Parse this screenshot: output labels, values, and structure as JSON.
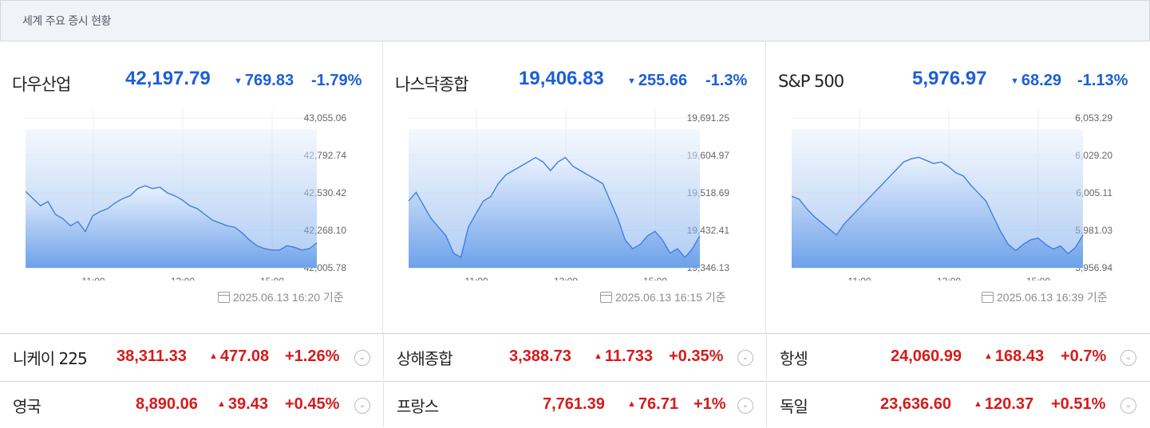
{
  "header": {
    "title": "세계 주요 증시 현황"
  },
  "colors": {
    "down": "#1c5fd6",
    "up": "#d61a1a",
    "area_top": "#eaf2fd",
    "area_bottom": "#6da1ea",
    "line": "#3f7fe0"
  },
  "icons": {
    "down_arrow": "triangle-down",
    "up_arrow": "triangle-up",
    "calendar": "calendar-icon",
    "toggle": "chevron-down-icon"
  },
  "panels": [
    {
      "name": "다우산업",
      "price": "42,197.79",
      "change": "769.83",
      "percent": "-1.79%",
      "direction": "down",
      "timestamp": "2025.06.13 16:20 기준",
      "chart_data": {
        "type": "area",
        "x_ticks": [
          "11:00",
          "13:00",
          "15:00"
        ],
        "y_ticks": [
          "43,055.06",
          "42,792.74",
          "42,530.42",
          "42,268.10",
          "42,005.78"
        ],
        "ylim": [
          42005.78,
          43055.06
        ],
        "series": [
          {
            "values": [
              42540,
              42490,
              42440,
              42470,
              42380,
              42350,
              42300,
              42330,
              42260,
              42370,
              42400,
              42420,
              42460,
              42490,
              42510,
              42560,
              42580,
              42560,
              42570,
              42530,
              42510,
              42480,
              42440,
              42420,
              42380,
              42340,
              42320,
              42300,
              42290,
              42250,
              42200,
              42160,
              42140,
              42130,
              42130,
              42160,
              42150,
              42130,
              42140,
              42180
            ]
          }
        ]
      }
    },
    {
      "name": "나스닥종합",
      "price": "19,406.83",
      "change": "255.66",
      "percent": "-1.3%",
      "direction": "down",
      "timestamp": "2025.06.13 16:15 기준",
      "chart_data": {
        "type": "area",
        "x_ticks": [
          "11:00",
          "13:00",
          "15:00"
        ],
        "y_ticks": [
          "19,691.25",
          "19,604.97",
          "19,518.69",
          "19,432.41",
          "19,346.13"
        ],
        "ylim": [
          19346.13,
          19691.25
        ],
        "series": [
          {
            "values": [
              19500,
              19520,
              19490,
              19460,
              19440,
              19420,
              19380,
              19370,
              19440,
              19470,
              19500,
              19510,
              19540,
              19560,
              19570,
              19580,
              19590,
              19600,
              19590,
              19570,
              19590,
              19600,
              19580,
              19570,
              19560,
              19550,
              19540,
              19500,
              19460,
              19410,
              19390,
              19400,
              19420,
              19430,
              19410,
              19380,
              19390,
              19370,
              19390,
              19420
            ]
          }
        ]
      }
    },
    {
      "name": "S&P 500",
      "price": "5,976.97",
      "change": "68.29",
      "percent": "-1.13%",
      "direction": "down",
      "timestamp": "2025.06.13 16:39 기준",
      "chart_data": {
        "type": "area",
        "x_ticks": [
          "11:00",
          "13:00",
          "15:00"
        ],
        "y_ticks": [
          "6,053.29",
          "6,029.20",
          "6,005.11",
          "5,981.03",
          "5,956.94"
        ],
        "ylim": [
          5956.94,
          6053.29
        ],
        "series": [
          {
            "values": [
              6003,
              6001,
              5995,
              5990,
              5986,
              5982,
              5978,
              5985,
              5990,
              5995,
              6000,
              6005,
              6010,
              6015,
              6020,
              6025,
              6027,
              6028,
              6026,
              6024,
              6025,
              6022,
              6018,
              6016,
              6010,
              6005,
              6000,
              5990,
              5980,
              5972,
              5968,
              5972,
              5975,
              5976,
              5972,
              5969,
              5971,
              5966,
              5970,
              5978
            ]
          }
        ]
      }
    }
  ],
  "rows": [
    [
      {
        "name": "니케이 225",
        "price": "38,311.33",
        "change": "477.08",
        "percent": "+1.26%"
      },
      {
        "name": "상해종합",
        "price": "3,388.73",
        "change": "11.733",
        "percent": "+0.35%"
      },
      {
        "name": "항셍",
        "price": "24,060.99",
        "change": "168.43",
        "percent": "+0.7%"
      }
    ],
    [
      {
        "name": "영국",
        "price": "8,890.06",
        "change": "39.43",
        "percent": "+0.45%"
      },
      {
        "name": "프랑스",
        "price": "7,761.39",
        "change": "76.71",
        "percent": "+1%"
      },
      {
        "name": "독일",
        "price": "23,636.60",
        "change": "120.37",
        "percent": "+0.51%"
      }
    ]
  ]
}
